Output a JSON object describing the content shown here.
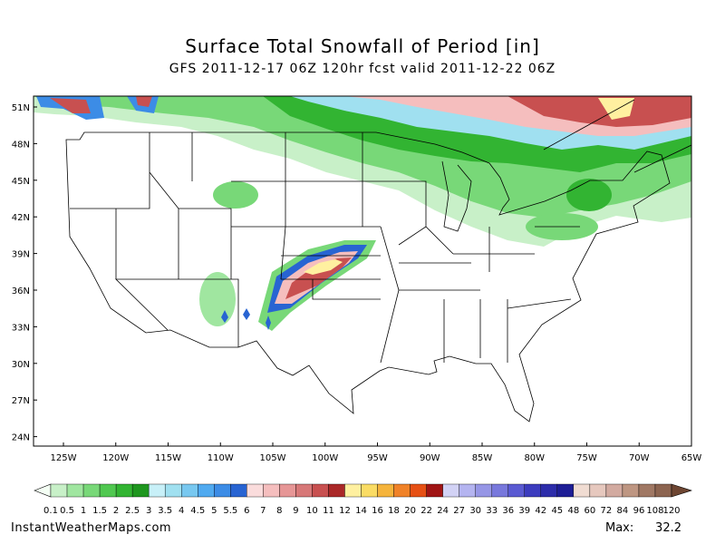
{
  "header": {
    "title": "Surface Total Snowfall of Period [in]",
    "subtitle": "GFS 2011-12-17 06Z 120hr fcst valid 2011-12-22 06Z"
  },
  "map": {
    "lat_labels": [
      "51N",
      "48N",
      "45N",
      "42N",
      "39N",
      "36N",
      "33N",
      "30N",
      "27N",
      "24N"
    ],
    "lon_labels": [
      "125W",
      "120W",
      "115W",
      "110W",
      "105W",
      "100W",
      "95W",
      "90W",
      "85W",
      "80W",
      "75W",
      "70W",
      "65W"
    ]
  },
  "colorbar": {
    "labels": [
      "0.1",
      "0.5",
      "1",
      "1.5",
      "2",
      "2.5",
      "3",
      "3.5",
      "4",
      "4.5",
      "5",
      "5.5",
      "6",
      "7",
      "8",
      "9",
      "10",
      "11",
      "12",
      "14",
      "16",
      "18",
      "20",
      "22",
      "24",
      "27",
      "30",
      "33",
      "36",
      "39",
      "42",
      "45",
      "48",
      "60",
      "72",
      "84",
      "96",
      "108",
      "120"
    ],
    "colors": [
      "#c8f0c8",
      "#a0e6a0",
      "#78d878",
      "#50c850",
      "#32b432",
      "#1e961e",
      "#c8f0f8",
      "#a0e0f0",
      "#78c8f0",
      "#50aaf0",
      "#3c8ce6",
      "#2864d2",
      "#fadcdc",
      "#f5bebe",
      "#e69696",
      "#d77878",
      "#c85050",
      "#aa2828",
      "#fff0a0",
      "#fadc64",
      "#f5b43c",
      "#f08228",
      "#e65014",
      "#a01414",
      "#d2d2f5",
      "#b4b4f0",
      "#9696e6",
      "#7878dc",
      "#5a5ad2",
      "#3c3cbe",
      "#2d2daa",
      "#1e1e96",
      "#f0dcd2",
      "#e6c8be",
      "#d2aaa0",
      "#be9682",
      "#a07864",
      "#8c6450"
    ]
  },
  "footer": {
    "site": "InstantWeatherMaps.com",
    "max_label": "Max:",
    "max_value": 32.2
  }
}
